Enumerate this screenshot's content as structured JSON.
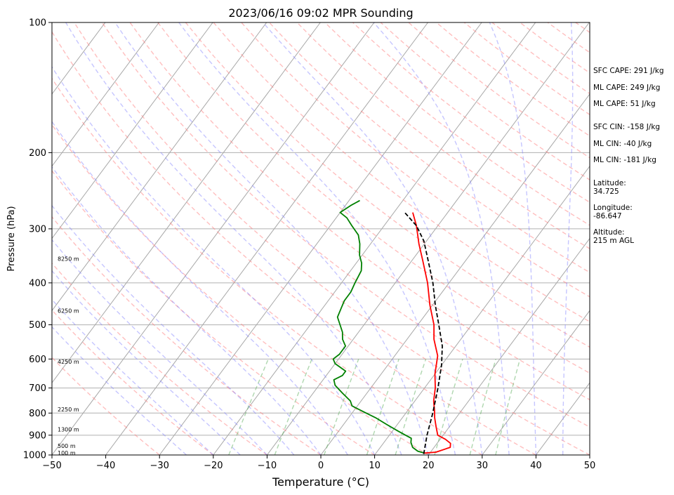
{
  "chart_data": {
    "type": "line",
    "title": "2023/06/16 09:02 MPR Sounding",
    "xlabel": "Temperature (°C)",
    "ylabel": "Pressure (hPa)",
    "xlim": [
      -50,
      50
    ],
    "ylim": [
      1000,
      100
    ],
    "y_scale": "log",
    "x_ticks": [
      "−50",
      "−40",
      "−30",
      "−20",
      "−10",
      "0",
      "10",
      "20",
      "30",
      "40",
      "50"
    ],
    "y_ticks": [
      "100",
      "200",
      "300",
      "400",
      "500",
      "600",
      "700",
      "800",
      "900",
      "1000"
    ],
    "grid": true,
    "series": [
      {
        "color": "#ff0000",
        "points": [
          [
            19,
            990
          ],
          [
            21,
            985
          ],
          [
            23,
            960
          ],
          [
            22.5,
            940
          ],
          [
            21,
            920
          ],
          [
            19,
            900
          ],
          [
            17.5,
            860
          ],
          [
            16,
            820
          ],
          [
            15,
            790
          ],
          [
            13.5,
            750
          ],
          [
            12,
            700
          ],
          [
            10,
            650
          ],
          [
            8,
            590
          ],
          [
            5,
            540
          ],
          [
            3,
            500
          ],
          [
            -0.5,
            450
          ],
          [
            -4,
            400
          ],
          [
            -8,
            355
          ],
          [
            -11,
            325
          ],
          [
            -14,
            295
          ],
          [
            -16.5,
            275
          ]
        ]
      },
      {
        "color": "#008000",
        "points": [
          [
            19,
            990
          ],
          [
            17.5,
            980
          ],
          [
            16,
            960
          ],
          [
            15,
            935
          ],
          [
            14.5,
            915
          ],
          [
            13,
            900
          ],
          [
            11,
            880
          ],
          [
            8,
            850
          ],
          [
            5,
            820
          ],
          [
            2,
            795
          ],
          [
            -1,
            770
          ],
          [
            -2,
            750
          ],
          [
            -4.5,
            720
          ],
          [
            -7,
            690
          ],
          [
            -8,
            670
          ],
          [
            -7,
            655
          ],
          [
            -7,
            640
          ],
          [
            -10,
            615
          ],
          [
            -11,
            600
          ],
          [
            -10.5,
            585
          ],
          [
            -10.5,
            560
          ],
          [
            -12,
            540
          ],
          [
            -13,
            520
          ],
          [
            -16,
            480
          ],
          [
            -16.5,
            460
          ],
          [
            -17,
            440
          ],
          [
            -17,
            420
          ],
          [
            -17.5,
            400
          ],
          [
            -18,
            375
          ],
          [
            -19,
            360
          ],
          [
            -20.5,
            345
          ],
          [
            -22,
            325
          ],
          [
            -23.5,
            310
          ],
          [
            -26,
            295
          ],
          [
            -28,
            283
          ],
          [
            -30,
            275
          ],
          [
            -29,
            265
          ],
          [
            -28,
            258
          ]
        ]
      },
      {
        "color": "#000000",
        "dashed": true,
        "points": [
          [
            19,
            995
          ],
          [
            17,
            900
          ],
          [
            15,
            800
          ],
          [
            12.5,
            700
          ],
          [
            10,
            620
          ],
          [
            7.5,
            560
          ],
          [
            3.9,
            500
          ],
          [
            0.5,
            450
          ],
          [
            -3,
            400
          ],
          [
            -7,
            355
          ],
          [
            -10.5,
            320
          ],
          [
            -14,
            295
          ],
          [
            -18,
            275
          ]
        ]
      }
    ],
    "height_labels": [
      {
        "text": "100 m",
        "p": 989
      },
      {
        "text": "500 m",
        "p": 953
      },
      {
        "text": "1300 m",
        "p": 873
      },
      {
        "text": "2250 m",
        "p": 784
      },
      {
        "text": "4250 m",
        "p": 608
      },
      {
        "text": "6250 m",
        "p": 464
      },
      {
        "text": "8250 m",
        "p": 352
      }
    ]
  },
  "stats": [
    "SFC CAPE: 291 J/kg",
    "ML CAPE: 249 J/kg",
    "ML CAPE: 51 J/kg",
    "SFC CIN: -158 J/kg",
    "ML CIN: -40 J/kg",
    "ML CIN: -181 J/kg"
  ],
  "location": {
    "latitude_label": "Latitude:",
    "latitude": "34.725",
    "longitude_label": "Longitude:",
    "longitude": "-86.647",
    "altitude_label": "Altitude:",
    "altitude": "215 m AGL"
  }
}
